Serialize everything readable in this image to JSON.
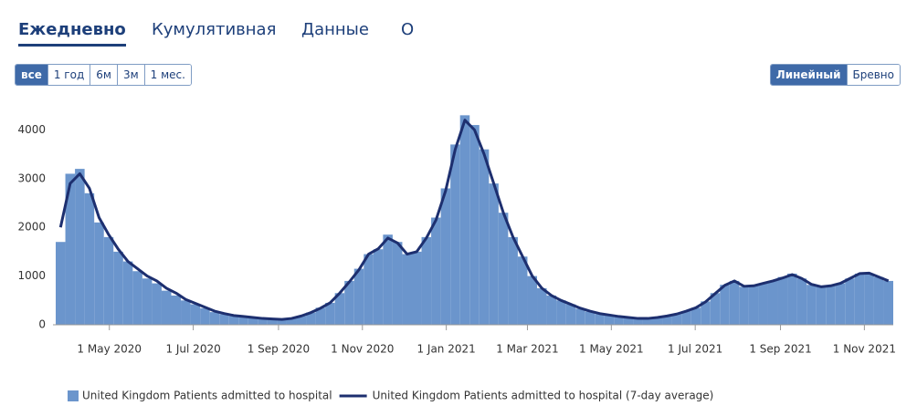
{
  "tabs": [
    "Ежедневно",
    "Кумулятивная",
    "Данные",
    "О"
  ],
  "range_buttons": [
    "все",
    "1 год",
    "6м",
    "3м",
    "1 мес."
  ],
  "scale_buttons": [
    "Линейный",
    "Бревно"
  ],
  "chart_data": {
    "type": "bar",
    "x": [
      "2020-03-23",
      "2020-03-30",
      "2020-04-06",
      "2020-04-13",
      "2020-04-20",
      "2020-04-27",
      "2020-05-04",
      "2020-05-11",
      "2020-05-18",
      "2020-05-25",
      "2020-06-01",
      "2020-06-08",
      "2020-06-15",
      "2020-06-22",
      "2020-06-29",
      "2020-07-06",
      "2020-07-13",
      "2020-07-20",
      "2020-07-27",
      "2020-08-03",
      "2020-08-10",
      "2020-08-17",
      "2020-08-24",
      "2020-08-31",
      "2020-09-07",
      "2020-09-14",
      "2020-09-21",
      "2020-09-28",
      "2020-10-05",
      "2020-10-12",
      "2020-10-19",
      "2020-10-26",
      "2020-11-02",
      "2020-11-09",
      "2020-11-16",
      "2020-11-23",
      "2020-11-30",
      "2020-12-07",
      "2020-12-14",
      "2020-12-21",
      "2020-12-28",
      "2021-01-04",
      "2021-01-11",
      "2021-01-18",
      "2021-01-25",
      "2021-02-01",
      "2021-02-08",
      "2021-02-15",
      "2021-02-22",
      "2021-03-01",
      "2021-03-08",
      "2021-03-15",
      "2021-03-22",
      "2021-03-29",
      "2021-04-05",
      "2021-04-12",
      "2021-04-19",
      "2021-04-26",
      "2021-05-03",
      "2021-05-10",
      "2021-05-17",
      "2021-05-24",
      "2021-05-31",
      "2021-06-07",
      "2021-06-14",
      "2021-06-21",
      "2021-06-28",
      "2021-07-05",
      "2021-07-12",
      "2021-07-19",
      "2021-07-26",
      "2021-08-02",
      "2021-08-09",
      "2021-08-16",
      "2021-08-23",
      "2021-08-30",
      "2021-09-06",
      "2021-09-13",
      "2021-09-20",
      "2021-09-27",
      "2021-10-04",
      "2021-10-11",
      "2021-10-18",
      "2021-10-25",
      "2021-11-01",
      "2021-11-08",
      "2021-11-15"
    ],
    "series": [
      {
        "name": "United Kingdom Patients admitted to hospital",
        "mark": "bar",
        "color": "#6b95cc",
        "values": [
          1700,
          3100,
          3200,
          2700,
          2100,
          1800,
          1500,
          1300,
          1100,
          950,
          850,
          700,
          600,
          500,
          420,
          340,
          260,
          220,
          180,
          160,
          140,
          130,
          120,
          110,
          130,
          180,
          250,
          350,
          450,
          650,
          900,
          1150,
          1450,
          1550,
          1850,
          1700,
          1450,
          1500,
          1800,
          2200,
          2800,
          3700,
          4300,
          4100,
          3600,
          2900,
          2300,
          1800,
          1400,
          1000,
          750,
          600,
          500,
          420,
          330,
          270,
          220,
          190,
          160,
          140,
          130,
          130,
          150,
          180,
          220,
          280,
          350,
          480,
          650,
          820,
          900,
          780,
          800,
          850,
          900,
          980,
          1050,
          950,
          820,
          780,
          800,
          850,
          950,
          1050,
          1050,
          980,
          900
        ]
      },
      {
        "name": "United Kingdom Patients admitted to hospital (7-day average)",
        "mark": "line",
        "color": "#1d2f6f",
        "values": [
          2000,
          2900,
          3100,
          2800,
          2200,
          1850,
          1550,
          1300,
          1150,
          1000,
          900,
          750,
          650,
          520,
          440,
          360,
          280,
          230,
          190,
          170,
          150,
          130,
          120,
          110,
          130,
          180,
          250,
          340,
          450,
          650,
          880,
          1130,
          1450,
          1560,
          1780,
          1680,
          1450,
          1500,
          1780,
          2150,
          2750,
          3600,
          4200,
          4000,
          3500,
          2900,
          2300,
          1800,
          1400,
          1000,
          750,
          600,
          500,
          420,
          340,
          280,
          230,
          200,
          170,
          150,
          130,
          130,
          150,
          180,
          220,
          280,
          350,
          470,
          640,
          810,
          900,
          790,
          800,
          850,
          900,
          960,
          1030,
          950,
          830,
          780,
          800,
          850,
          950,
          1050,
          1060,
          980,
          900
        ]
      }
    ],
    "xlim": [
      "2020-03-21",
      "2021-11-22"
    ],
    "xticks": [
      {
        "value": "2020-05-01",
        "label": "1 May 2020"
      },
      {
        "value": "2020-07-01",
        "label": "1 Jul 2020"
      },
      {
        "value": "2020-09-01",
        "label": "1 Sep 2020"
      },
      {
        "value": "2020-11-01",
        "label": "1 Nov 2020"
      },
      {
        "value": "2021-01-01",
        "label": "1 Jan 2021"
      },
      {
        "value": "2021-03-01",
        "label": "1 Mar 2021"
      },
      {
        "value": "2021-05-01",
        "label": "1 May 2021"
      },
      {
        "value": "2021-07-01",
        "label": "1 Jul 2021"
      },
      {
        "value": "2021-09-01",
        "label": "1 Sep 2021"
      },
      {
        "value": "2021-11-01",
        "label": "1 Nov 2021"
      }
    ],
    "ylim": [
      0,
      4700
    ],
    "yticks": [
      0,
      1000,
      2000,
      3000,
      4000
    ],
    "grid": false
  }
}
